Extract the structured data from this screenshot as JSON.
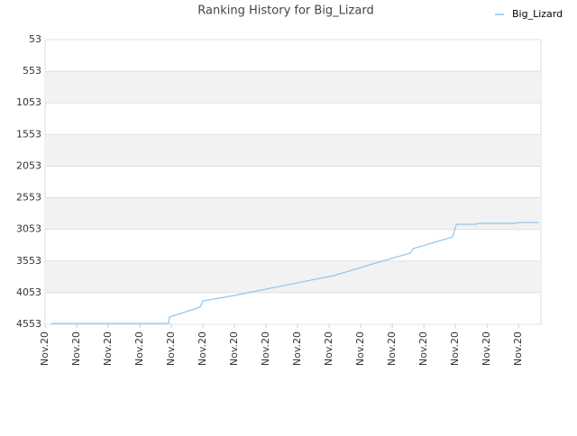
{
  "chart_data": {
    "type": "line",
    "title": "Ranking History for Big_Lizard",
    "series": [
      {
        "name": "Big_Lizard",
        "color": "#90c4ee",
        "x": [
          0.2,
          3.91,
          3.94,
          4.91,
          5.0,
          6.0,
          7.14,
          8.29,
          9.14,
          10.0,
          10.86,
          11.57,
          11.66,
          12.91,
          13.03,
          13.66,
          13.71,
          14.91,
          15.0,
          15.63
        ],
        "values": [
          4540,
          4540,
          4439,
          4282,
          4183,
          4097,
          3983,
          3869,
          3784,
          3656,
          3528,
          3428,
          3357,
          3172,
          2972,
          2972,
          2958,
          2958,
          2944,
          2944
        ]
      }
    ],
    "xlim": [
      0,
      15.71
    ],
    "xticks": [
      {
        "value": 0,
        "label": "Nov.20"
      },
      {
        "value": 1,
        "label": "Nov.20"
      },
      {
        "value": 2,
        "label": "Nov.20"
      },
      {
        "value": 3,
        "label": "Nov.20"
      },
      {
        "value": 4,
        "label": "Nov.20"
      },
      {
        "value": 5,
        "label": "Nov.20"
      },
      {
        "value": 6,
        "label": "Nov.20"
      },
      {
        "value": 7,
        "label": "Nov.20"
      },
      {
        "value": 8,
        "label": "Nov.20"
      },
      {
        "value": 9,
        "label": "Nov.20"
      },
      {
        "value": 10,
        "label": "Nov.20"
      },
      {
        "value": 11,
        "label": "Nov.20"
      },
      {
        "value": 12,
        "label": "Nov.20"
      },
      {
        "value": 13,
        "label": "Nov.20"
      },
      {
        "value": 14,
        "label": "Nov.20"
      },
      {
        "value": 15,
        "label": "Nov.20"
      }
    ],
    "ylim": [
      53,
      4553
    ],
    "yticks": [
      53,
      553,
      1053,
      1553,
      2053,
      2553,
      3053,
      3553,
      4053,
      4553
    ],
    "inverted_y": true,
    "grid": true,
    "legend": "top-right"
  }
}
